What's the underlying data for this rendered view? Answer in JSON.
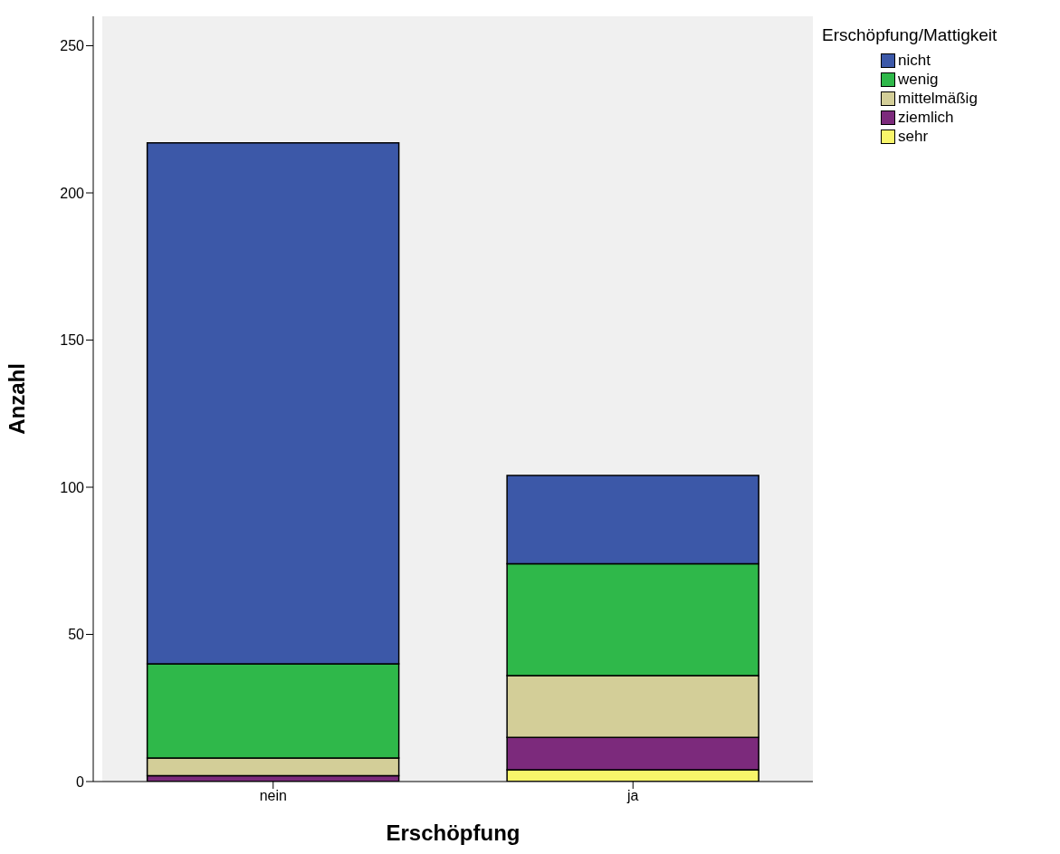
{
  "chart_data": {
    "type": "bar",
    "stacked": true,
    "categories": [
      "nein",
      "ja"
    ],
    "xlabel": "Erschöpfung",
    "ylabel": "Anzahl",
    "legend_title": "Erschöpfung/Mattigkeit",
    "legend": "top right",
    "grid": false,
    "ylim": [
      0,
      260
    ],
    "yticks": [
      0,
      50,
      100,
      150,
      200,
      250
    ],
    "series": [
      {
        "name": "sehr",
        "color": "#f8f56a",
        "values": [
          0,
          4
        ]
      },
      {
        "name": "ziemlich",
        "color": "#7c2a7c",
        "values": [
          2,
          11
        ]
      },
      {
        "name": "mittelmäßig",
        "color": "#d3ce98",
        "values": [
          6,
          21
        ]
      },
      {
        "name": "wenig",
        "color": "#2fb84a",
        "values": [
          32,
          38
        ]
      },
      {
        "name": "nicht",
        "color": "#3c58a8",
        "values": [
          177,
          30
        ]
      }
    ]
  }
}
